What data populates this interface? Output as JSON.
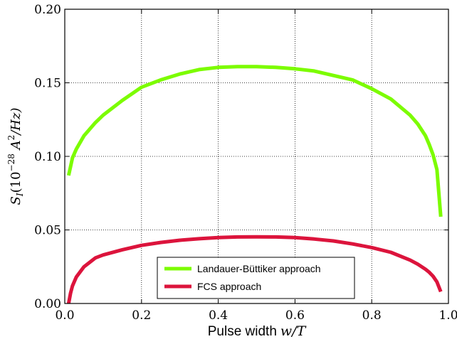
{
  "chart_data": {
    "type": "line",
    "xlabel_text": "Pulse width",
    "xlabel_math": "w/T",
    "ylabel": "S_I(10^-28 A^2/Hz)",
    "ylabel_parts": {
      "S": "S",
      "sub": "I",
      "open": "(10",
      "exp1": "−28",
      "mid": " A",
      "exp2": "2",
      "close": "/Hz)"
    },
    "xlim": [
      0.0,
      1.0
    ],
    "ylim": [
      0.0,
      0.2
    ],
    "xticks": [
      "0.0",
      "0.2",
      "0.4",
      "0.6",
      "0.8",
      "1.0"
    ],
    "yticks": [
      "0.00",
      "0.05",
      "0.10",
      "0.15",
      "0.20"
    ],
    "grid": true,
    "legend_position": "bottom-center",
    "series": [
      {
        "name": "Landauer-Büttiker approach",
        "color": "#7cfc00",
        "x": [
          0.01,
          0.02,
          0.03,
          0.05,
          0.08,
          0.1,
          0.15,
          0.2,
          0.25,
          0.3,
          0.35,
          0.4,
          0.45,
          0.5,
          0.55,
          0.6,
          0.65,
          0.7,
          0.75,
          0.8,
          0.85,
          0.9,
          0.92,
          0.94,
          0.95,
          0.96,
          0.97,
          0.98
        ],
        "y": [
          0.087,
          0.099,
          0.105,
          0.114,
          0.123,
          0.128,
          0.138,
          0.147,
          0.152,
          0.156,
          0.159,
          0.1605,
          0.161,
          0.161,
          0.1605,
          0.1595,
          0.158,
          0.155,
          0.152,
          0.146,
          0.139,
          0.128,
          0.122,
          0.114,
          0.108,
          0.101,
          0.091,
          0.059
        ]
      },
      {
        "name": "FCS approach",
        "color": "#dc143c",
        "x": [
          0.01,
          0.015,
          0.02,
          0.03,
          0.05,
          0.08,
          0.1,
          0.15,
          0.2,
          0.25,
          0.3,
          0.35,
          0.4,
          0.45,
          0.5,
          0.55,
          0.6,
          0.65,
          0.7,
          0.75,
          0.8,
          0.85,
          0.9,
          0.92,
          0.94,
          0.95,
          0.96,
          0.97,
          0.98
        ],
        "y": [
          0.0,
          0.007,
          0.012,
          0.018,
          0.025,
          0.031,
          0.033,
          0.0365,
          0.0395,
          0.0415,
          0.043,
          0.044,
          0.0448,
          0.0452,
          0.0453,
          0.0452,
          0.0448,
          0.0438,
          0.0425,
          0.0405,
          0.038,
          0.0348,
          0.0295,
          0.0267,
          0.0233,
          0.0212,
          0.0185,
          0.0147,
          0.008
        ]
      }
    ]
  }
}
